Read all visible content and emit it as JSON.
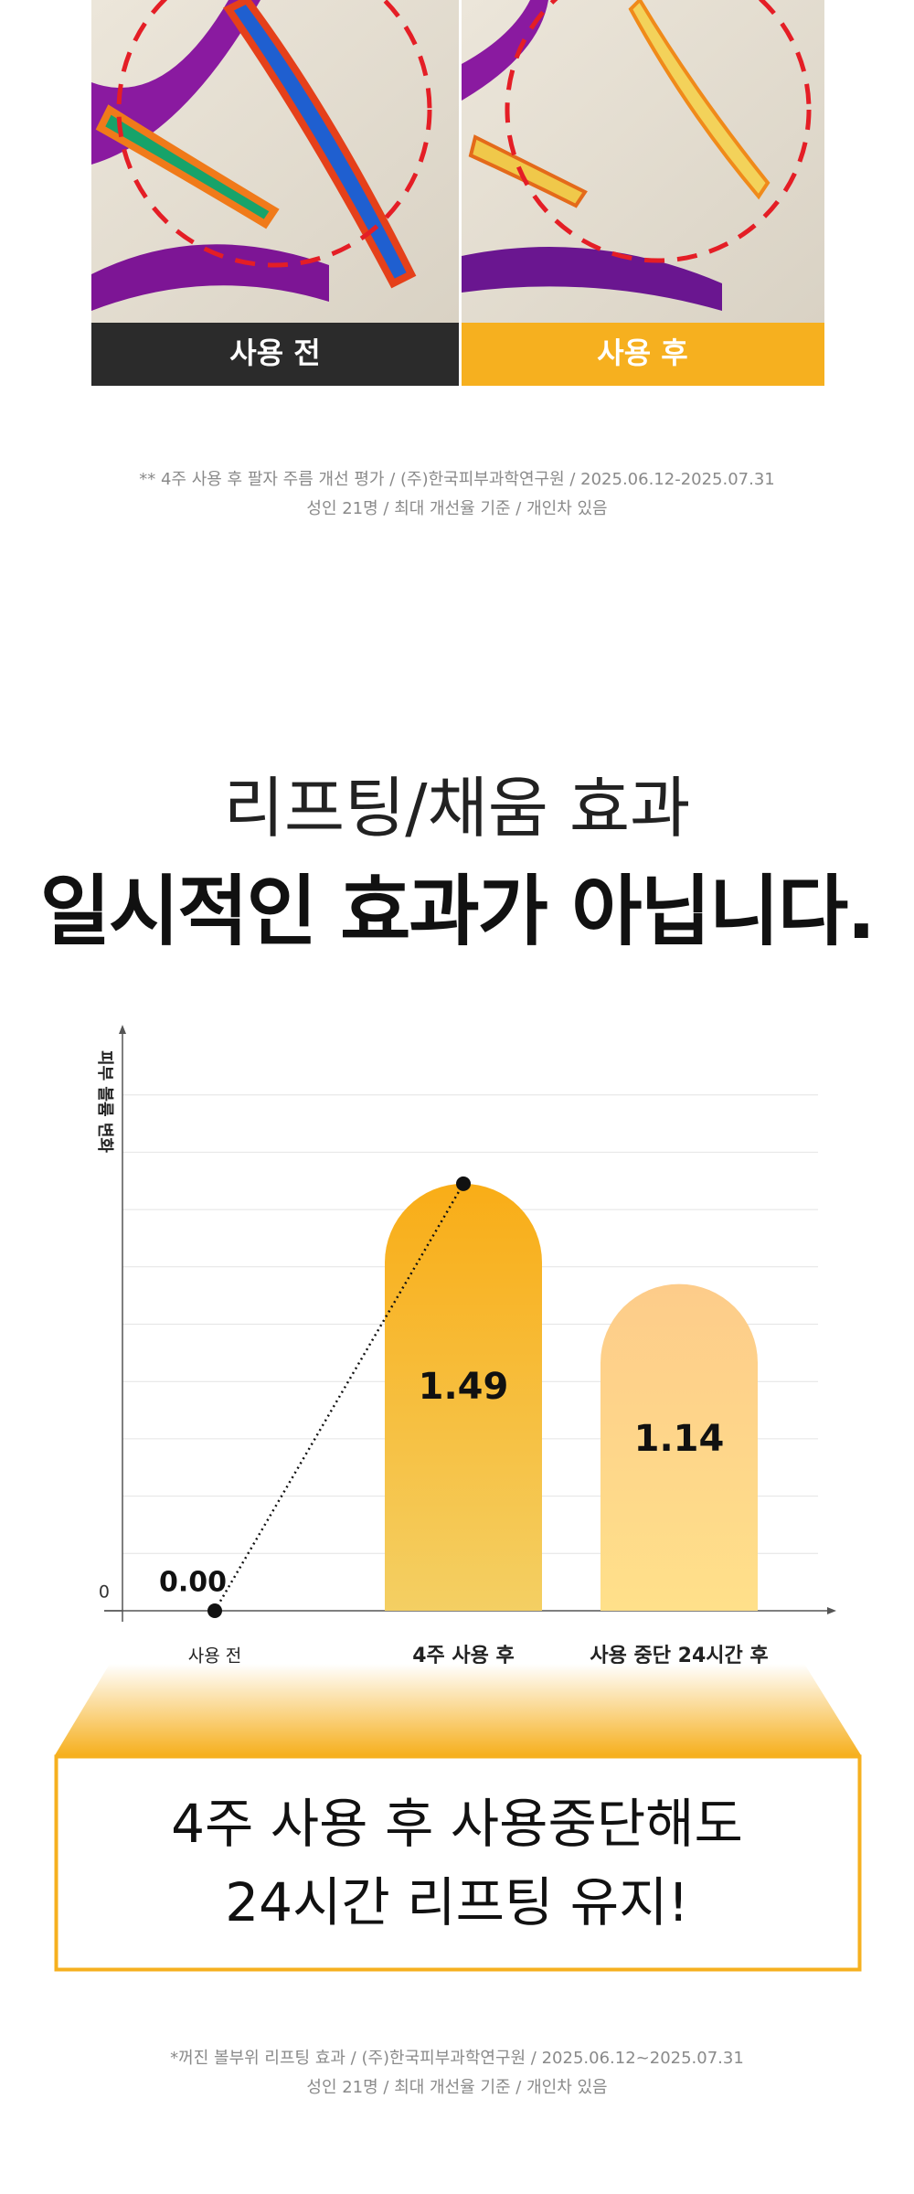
{
  "before_after": {
    "before_label": "사용 전",
    "after_label": "사용 후"
  },
  "note1": {
    "lines": [
      "** 4주 사용 후 팔자 주름 개선 평가 / (주)한국피부과학연구원 / 2025.06.12-2025.07.31",
      "성인 21명 / 최대 개선율 기준 / 개인차 있음"
    ]
  },
  "headline": {
    "subtitle": "리프팅/채움 효과",
    "title": "일시적인 효과가 아닙니다."
  },
  "chart_data": {
    "type": "bar",
    "y_label": "피부 볼륨 변화",
    "categories": [
      "사용 전",
      "4주 사용 후",
      "사용 중단 24시간 후"
    ],
    "values": [
      0,
      1.49,
      1.14
    ],
    "value_labels": [
      "0.00",
      "1.49",
      "1.14"
    ],
    "bar_colors": [
      [
        "#f9ad17",
        "#f4cf63"
      ],
      [
        "#fdcc8a",
        "#ffe08a"
      ]
    ],
    "marker_color": "#111111",
    "ylim": [
      0,
      2
    ],
    "yticks": [
      0
    ],
    "ygrid": [
      0.2,
      0.4,
      0.6,
      0.8,
      1.0,
      1.2,
      1.4,
      1.6,
      1.8
    ],
    "grid": true
  },
  "callout": {
    "lines": [
      "4주 사용 후 사용중단해도",
      "24시간 리프팅 유지!"
    ]
  },
  "note2": {
    "lines": [
      "*꺼진 볼부위 리프팅 효과  / (주)한국피부과학연구원 / 2025.06.12~2025.07.31",
      "성인 21명 / 최대 개선율 기준 / 개인차 있음"
    ]
  }
}
